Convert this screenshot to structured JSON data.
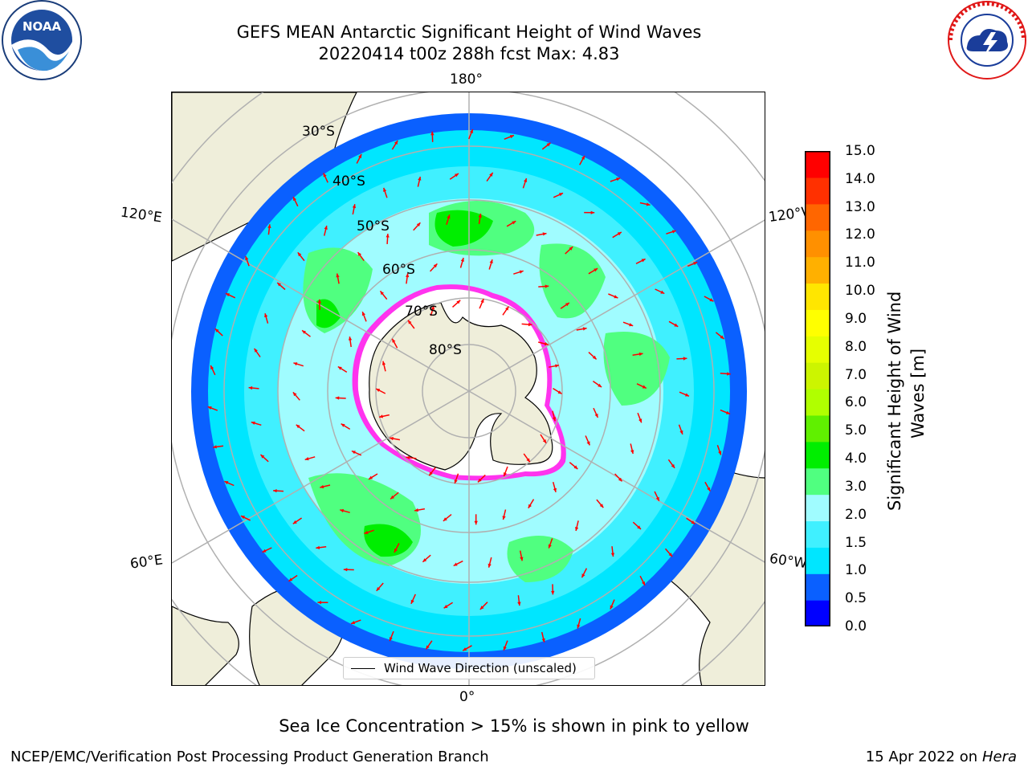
{
  "header": {
    "title_line1": "GEFS MEAN Antarctic Significant Height of Wind Waves",
    "title_line2": "20220414 t00z 288h fcst   Max: 4.83"
  },
  "logos": {
    "left": "noaa-logo",
    "right": "nws-logo"
  },
  "map": {
    "projection": "south-polar-stereographic",
    "lon_labels": {
      "top": "180°",
      "bottom": "0°",
      "upper_left": "120°E",
      "upper_right": "120°W",
      "lower_left": "60°E",
      "lower_right": "60°W"
    },
    "lat_labels": [
      "30°S",
      "40°S",
      "50°S",
      "60°S",
      "70°S",
      "80°S"
    ],
    "colors": {
      "land": "#efeeda",
      "ice": "#ffffff",
      "ice_edge_pink": "#ff33ee",
      "ice_edge_yellow": "#ffd000",
      "graticule": "#b0b0b0",
      "arrow": "#ff0000"
    }
  },
  "legend": {
    "label": "Wind Wave Direction (unscaled)"
  },
  "colorbar": {
    "label_line1": "Significant Height of Wind",
    "label_line2": "Waves [m]",
    "ticks": [
      "15.0",
      "14.0",
      "13.0",
      "12.0",
      "11.0",
      "10.0",
      "9.0",
      "8.0",
      "7.0",
      "6.0",
      "5.0",
      "4.0",
      "3.0",
      "2.0",
      "1.5",
      "1.0",
      "0.5",
      "0.0"
    ],
    "colors_bottom_to_top": [
      "#0000ff",
      "#0a60ff",
      "#00e6ff",
      "#40f0ff",
      "#a0fcff",
      "#50ff80",
      "#00ee00",
      "#60f000",
      "#b0ff00",
      "#ccf500",
      "#e6ff00",
      "#ffff00",
      "#ffe600",
      "#ffb000",
      "#ff9000",
      "#ff6600",
      "#ff3000",
      "#ff0000"
    ]
  },
  "footer": {
    "note": "Sea Ice Concentration > 15% is shown in pink to yellow",
    "left": "NCEP/EMC/Verification Post Processing Product Generation Branch",
    "right_date": "15 Apr 2022 on ",
    "right_machine": "Hera"
  }
}
